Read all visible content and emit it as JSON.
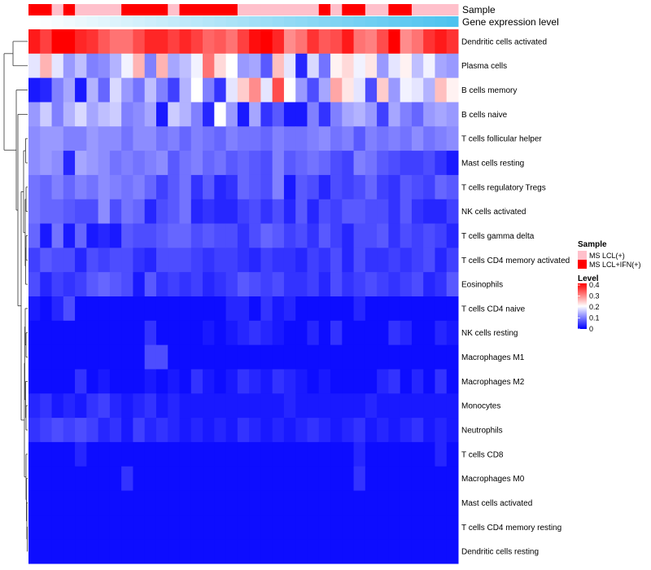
{
  "chart_data": {
    "type": "heatmap",
    "rows": [
      "Dendritic cells activated",
      "Plasma cells",
      "B cells memory",
      "B cells naive",
      "T cells follicular helper",
      "Mast cells resting",
      "T cells regulatory  Tregs",
      "NK cells activated",
      "T cells gamma delta",
      "T cells CD4 memory activated",
      "Eosinophils",
      "T cells CD4 naive",
      "NK cells resting",
      "Macrophages M1",
      "Macrophages M2",
      "Monocytes",
      "Neutrophils",
      "T cells CD8",
      "Macrophages M0",
      "Mast cells activated",
      "T cells CD4 memory resting",
      "Dendritic cells resting"
    ],
    "sample_groups": [
      "IFN",
      "IFN",
      "LCL",
      "IFN",
      "LCL",
      "LCL",
      "LCL",
      "LCL",
      "IFN",
      "IFN",
      "IFN",
      "IFN",
      "LCL",
      "IFN",
      "IFN",
      "IFN",
      "IFN",
      "IFN",
      "LCL",
      "LCL",
      "LCL",
      "LCL",
      "LCL",
      "LCL",
      "LCL",
      "IFN",
      "LCL",
      "IFN",
      "IFN",
      "LCL",
      "LCL",
      "IFN",
      "IFN",
      "LCL",
      "LCL",
      "LCL",
      "LCL"
    ],
    "values": [
      [
        0.38,
        0.35,
        0.4,
        0.4,
        0.37,
        0.36,
        0.33,
        0.31,
        0.31,
        0.34,
        0.37,
        0.37,
        0.35,
        0.37,
        0.35,
        0.32,
        0.33,
        0.31,
        0.35,
        0.39,
        0.4,
        0.37,
        0.29,
        0.31,
        0.36,
        0.33,
        0.34,
        0.38,
        0.31,
        0.3,
        0.34,
        0.4,
        0.29,
        0.31,
        0.36,
        0.38,
        0.36
      ],
      [
        0.18,
        0.26,
        0.18,
        0.12,
        0.15,
        0.1,
        0.11,
        0.14,
        0.19,
        0.26,
        0.1,
        0.26,
        0.13,
        0.15,
        0.19,
        0.31,
        0.23,
        0.2,
        0.12,
        0.13,
        0.07,
        0.25,
        0.18,
        0.03,
        0.17,
        0.09,
        0.21,
        0.23,
        0.19,
        0.22,
        0.12,
        0.18,
        0.21,
        0.15,
        0.19,
        0.13,
        0.12
      ],
      [
        0.02,
        0.03,
        0.1,
        0.13,
        0.02,
        0.14,
        0.08,
        0.17,
        0.12,
        0.09,
        0.15,
        0.1,
        0.05,
        0.14,
        0.2,
        0.1,
        0.04,
        0.18,
        0.24,
        0.29,
        0.18,
        0.34,
        0.2,
        0.12,
        0.06,
        0.13,
        0.27,
        0.22,
        0.18,
        0.06,
        0.24,
        0.12,
        0.19,
        0.18,
        0.14,
        0.25,
        0.21
      ],
      [
        0.12,
        0.16,
        0.1,
        0.14,
        0.17,
        0.13,
        0.15,
        0.16,
        0.1,
        0.11,
        0.13,
        0.02,
        0.16,
        0.14,
        0.1,
        0.03,
        0.2,
        0.12,
        0.02,
        0.13,
        0.04,
        0.07,
        0.02,
        0.02,
        0.1,
        0.04,
        0.1,
        0.13,
        0.14,
        0.12,
        0.05,
        0.13,
        0.1,
        0.08,
        0.12,
        0.13,
        0.12
      ],
      [
        0.11,
        0.12,
        0.12,
        0.1,
        0.1,
        0.12,
        0.11,
        0.11,
        0.09,
        0.11,
        0.11,
        0.09,
        0.1,
        0.08,
        0.1,
        0.09,
        0.08,
        0.1,
        0.09,
        0.09,
        0.08,
        0.1,
        0.09,
        0.09,
        0.1,
        0.11,
        0.09,
        0.1,
        0.07,
        0.1,
        0.09,
        0.1,
        0.09,
        0.11,
        0.09,
        0.1,
        0.11
      ],
      [
        0.11,
        0.12,
        0.11,
        0.03,
        0.13,
        0.12,
        0.11,
        0.09,
        0.1,
        0.09,
        0.1,
        0.11,
        0.07,
        0.09,
        0.1,
        0.08,
        0.09,
        0.07,
        0.08,
        0.07,
        0.06,
        0.1,
        0.07,
        0.08,
        0.09,
        0.08,
        0.06,
        0.05,
        0.1,
        0.09,
        0.07,
        0.06,
        0.05,
        0.05,
        0.06,
        0.04,
        0.02
      ],
      [
        0.09,
        0.08,
        0.1,
        0.08,
        0.1,
        0.09,
        0.11,
        0.1,
        0.09,
        0.1,
        0.08,
        0.05,
        0.07,
        0.09,
        0.04,
        0.07,
        0.03,
        0.04,
        0.08,
        0.07,
        0.06,
        0.1,
        0.02,
        0.07,
        0.06,
        0.03,
        0.06,
        0.05,
        0.06,
        0.08,
        0.05,
        0.04,
        0.07,
        0.06,
        0.05,
        0.08,
        0.07
      ],
      [
        0.09,
        0.08,
        0.08,
        0.07,
        0.06,
        0.06,
        0.11,
        0.06,
        0.09,
        0.08,
        0.03,
        0.06,
        0.07,
        0.09,
        0.03,
        0.04,
        0.03,
        0.03,
        0.05,
        0.06,
        0.04,
        0.06,
        0.03,
        0.07,
        0.03,
        0.06,
        0.05,
        0.07,
        0.07,
        0.06,
        0.06,
        0.04,
        0.07,
        0.04,
        0.03,
        0.03,
        0.05
      ],
      [
        0.08,
        0.02,
        0.09,
        0.02,
        0.08,
        0.02,
        0.03,
        0.02,
        0.07,
        0.06,
        0.06,
        0.07,
        0.08,
        0.08,
        0.06,
        0.07,
        0.06,
        0.06,
        0.04,
        0.06,
        0.08,
        0.07,
        0.05,
        0.06,
        0.04,
        0.07,
        0.05,
        0.03,
        0.06,
        0.06,
        0.07,
        0.04,
        0.06,
        0.05,
        0.06,
        0.05,
        0.03
      ],
      [
        0.05,
        0.07,
        0.06,
        0.06,
        0.03,
        0.06,
        0.05,
        0.06,
        0.06,
        0.04,
        0.03,
        0.06,
        0.06,
        0.06,
        0.05,
        0.04,
        0.05,
        0.05,
        0.04,
        0.03,
        0.05,
        0.04,
        0.04,
        0.03,
        0.05,
        0.04,
        0.06,
        0.03,
        0.06,
        0.04,
        0.04,
        0.05,
        0.04,
        0.05,
        0.06,
        0.03,
        0.05
      ],
      [
        0.06,
        0.03,
        0.05,
        0.04,
        0.05,
        0.07,
        0.08,
        0.07,
        0.06,
        0.02,
        0.07,
        0.04,
        0.05,
        0.04,
        0.05,
        0.03,
        0.04,
        0.05,
        0.07,
        0.06,
        0.05,
        0.06,
        0.04,
        0.04,
        0.05,
        0.03,
        0.06,
        0.04,
        0.05,
        0.06,
        0.05,
        0.04,
        0.05,
        0.06,
        0.03,
        0.04,
        0.07
      ],
      [
        0.02,
        0.01,
        0.03,
        0.06,
        0.01,
        0.01,
        0.01,
        0.01,
        0.01,
        0.01,
        0.01,
        0.01,
        0.01,
        0.01,
        0.01,
        0.01,
        0.01,
        0.03,
        0.03,
        0.01,
        0.04,
        0.02,
        0.03,
        0.01,
        0.01,
        0.01,
        0.01,
        0.01,
        0.03,
        0.01,
        0.01,
        0.01,
        0.01,
        0.01,
        0.01,
        0.01,
        0.01
      ],
      [
        0.01,
        0.01,
        0.01,
        0.01,
        0.01,
        0.01,
        0.01,
        0.01,
        0.01,
        0.01,
        0.04,
        0.01,
        0.01,
        0.01,
        0.01,
        0.02,
        0.01,
        0.02,
        0.03,
        0.04,
        0.03,
        0.02,
        0.01,
        0.01,
        0.03,
        0.01,
        0.04,
        0.01,
        0.01,
        0.01,
        0.01,
        0.04,
        0.03,
        0.01,
        0.01,
        0.03,
        0.02
      ],
      [
        0.01,
        0.01,
        0.01,
        0.01,
        0.01,
        0.01,
        0.01,
        0.01,
        0.01,
        0.01,
        0.06,
        0.06,
        0.01,
        0.01,
        0.01,
        0.01,
        0.01,
        0.01,
        0.01,
        0.01,
        0.01,
        0.01,
        0.01,
        0.01,
        0.01,
        0.01,
        0.01,
        0.01,
        0.01,
        0.01,
        0.01,
        0.01,
        0.01,
        0.01,
        0.01,
        0.01,
        0.01
      ],
      [
        0.01,
        0.01,
        0.01,
        0.01,
        0.04,
        0.01,
        0.02,
        0.01,
        0.01,
        0.01,
        0.02,
        0.01,
        0.02,
        0.01,
        0.04,
        0.02,
        0.01,
        0.02,
        0.04,
        0.03,
        0.02,
        0.04,
        0.03,
        0.02,
        0.01,
        0.02,
        0.01,
        0.01,
        0.01,
        0.01,
        0.03,
        0.04,
        0.01,
        0.03,
        0.01,
        0.04,
        0.01
      ],
      [
        0.03,
        0.04,
        0.02,
        0.03,
        0.02,
        0.04,
        0.05,
        0.03,
        0.02,
        0.03,
        0.04,
        0.02,
        0.03,
        0.02,
        0.02,
        0.02,
        0.02,
        0.02,
        0.02,
        0.02,
        0.02,
        0.02,
        0.03,
        0.02,
        0.02,
        0.02,
        0.02,
        0.02,
        0.02,
        0.03,
        0.02,
        0.02,
        0.02,
        0.02,
        0.02,
        0.02,
        0.02
      ],
      [
        0.04,
        0.05,
        0.06,
        0.05,
        0.06,
        0.05,
        0.03,
        0.04,
        0.02,
        0.05,
        0.03,
        0.04,
        0.03,
        0.02,
        0.03,
        0.02,
        0.03,
        0.02,
        0.04,
        0.03,
        0.02,
        0.03,
        0.02,
        0.03,
        0.04,
        0.03,
        0.02,
        0.03,
        0.04,
        0.02,
        0.03,
        0.02,
        0.03,
        0.04,
        0.02,
        0.03,
        0.02
      ],
      [
        0.01,
        0.01,
        0.01,
        0.01,
        0.03,
        0.01,
        0.01,
        0.01,
        0.01,
        0.01,
        0.01,
        0.01,
        0.01,
        0.01,
        0.01,
        0.01,
        0.01,
        0.01,
        0.01,
        0.01,
        0.01,
        0.01,
        0.01,
        0.01,
        0.01,
        0.01,
        0.01,
        0.01,
        0.03,
        0.01,
        0.01,
        0.01,
        0.01,
        0.01,
        0.01,
        0.03,
        0.01
      ],
      [
        0.01,
        0.01,
        0.01,
        0.01,
        0.01,
        0.01,
        0.01,
        0.01,
        0.04,
        0.01,
        0.01,
        0.01,
        0.01,
        0.01,
        0.01,
        0.01,
        0.01,
        0.01,
        0.01,
        0.01,
        0.01,
        0.01,
        0.01,
        0.01,
        0.01,
        0.01,
        0.01,
        0.01,
        0.04,
        0.01,
        0.01,
        0.01,
        0.01,
        0.01,
        0.01,
        0.01,
        0.01
      ],
      [
        0.01,
        0.01,
        0.01,
        0.01,
        0.01,
        0.01,
        0.01,
        0.01,
        0.01,
        0.01,
        0.01,
        0.01,
        0.01,
        0.01,
        0.01,
        0.01,
        0.01,
        0.01,
        0.01,
        0.01,
        0.01,
        0.01,
        0.01,
        0.01,
        0.01,
        0.01,
        0.01,
        0.01,
        0.01,
        0.01,
        0.01,
        0.01,
        0.01,
        0.01,
        0.01,
        0.01,
        0.01
      ],
      [
        0.01,
        0.01,
        0.01,
        0.01,
        0.01,
        0.01,
        0.01,
        0.01,
        0.01,
        0.01,
        0.01,
        0.01,
        0.01,
        0.01,
        0.01,
        0.01,
        0.01,
        0.01,
        0.01,
        0.01,
        0.01,
        0.01,
        0.01,
        0.01,
        0.01,
        0.01,
        0.01,
        0.01,
        0.01,
        0.01,
        0.01,
        0.01,
        0.01,
        0.01,
        0.01,
        0.01,
        0.01
      ],
      [
        0.01,
        0.01,
        0.01,
        0.01,
        0.01,
        0.01,
        0.01,
        0.01,
        0.01,
        0.01,
        0.01,
        0.01,
        0.01,
        0.01,
        0.01,
        0.01,
        0.01,
        0.01,
        0.01,
        0.01,
        0.01,
        0.01,
        0.01,
        0.01,
        0.01,
        0.01,
        0.01,
        0.01,
        0.01,
        0.01,
        0.01,
        0.01,
        0.01,
        0.01,
        0.01,
        0.01,
        0.01
      ]
    ],
    "annotations": {
      "sample_label": "Sample",
      "gene_label": "Gene expression level"
    },
    "legend": {
      "sample_title": "Sample",
      "sample_items": [
        {
          "key": "LCL",
          "label": "MS LCL(+)",
          "color": "#FFC0CB"
        },
        {
          "key": "IFN",
          "label": "MS LCL+IFN(+)",
          "color": "#FF0000"
        }
      ],
      "level_title": "Level",
      "level_ticks": [
        "0.4",
        "0.3",
        "0.2",
        "0.1",
        "0"
      ],
      "level_tick_values": [
        0.4,
        0.3,
        0.2,
        0.1,
        0
      ],
      "range": [
        0,
        0.4
      ]
    },
    "colors": {
      "low": "#0000FF",
      "mid": "#FFFFFF",
      "high": "#FF0000",
      "gene_bar_start": "#FFFFFF",
      "gene_bar_end": "#4EC3EF"
    }
  }
}
